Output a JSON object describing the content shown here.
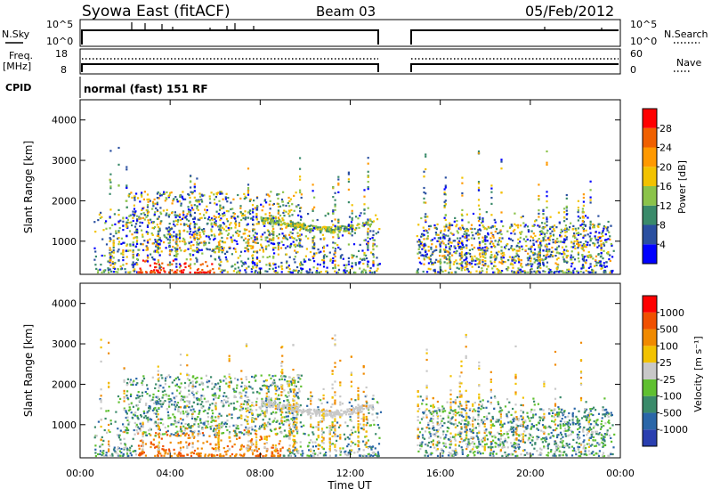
{
  "header": {
    "title": "Syowa East (fitACF)",
    "beam": "Beam 03",
    "date": "05/Feb/2012",
    "cpid_label": "CPID",
    "cpid_value": "normal (fast) 151 RF"
  },
  "noise_panel": {
    "left_label": "N.Sky",
    "left_ticks": [
      "10^5",
      "10^0"
    ],
    "right_label": "N.Search",
    "right_ticks": [
      "10^5",
      "10^0"
    ]
  },
  "freq_panel": {
    "left_label_line1": "Freq.",
    "left_label_line2": "[MHz]",
    "left_ticks": [
      "18",
      "8"
    ],
    "right_label": "Nave",
    "right_ticks": [
      "60",
      "0"
    ]
  },
  "colors": {
    "power_scale": [
      "#0000ff",
      "#2a4fa0",
      "#3a8a6a",
      "#8bc34a",
      "#f2c200",
      "#ff9900",
      "#f06000",
      "#ff0000"
    ],
    "velocity_scale": [
      "#2a3fb0",
      "#2a66a8",
      "#3a8a6a",
      "#5fc030",
      "#c8c8c8",
      "#f2c200",
      "#f08a00",
      "#f05000",
      "#ff0000"
    ]
  },
  "chart_data": [
    {
      "type": "heatmap",
      "name": "power",
      "ylabel": "Slant Range [km]",
      "xlim": [
        "00:00",
        "24:00"
      ],
      "ylim": [
        180,
        4500
      ],
      "y_ticks": [
        1000,
        2000,
        3000,
        4000
      ],
      "colorbar_label": "Power [dB]",
      "colorbar_ticks": [
        4,
        8,
        12,
        16,
        20,
        24,
        28
      ],
      "data_gap": [
        "13:20",
        "14:55"
      ]
    },
    {
      "type": "heatmap",
      "name": "velocity",
      "xlabel": "Time UT",
      "ylabel": "Slant Range [km]",
      "xlim": [
        "00:00",
        "24:00"
      ],
      "ylim": [
        180,
        4500
      ],
      "x_ticks": [
        "00:00",
        "04:00",
        "08:00",
        "12:00",
        "16:00",
        "20:00",
        "00:00"
      ],
      "y_ticks": [
        1000,
        2000,
        3000,
        4000
      ],
      "colorbar_label": "Velocity [m s⁻¹]",
      "colorbar_ticks": [
        1000,
        500,
        100,
        25,
        -25,
        -100,
        -500,
        -1000
      ],
      "data_gap": [
        "13:20",
        "14:55"
      ]
    }
  ]
}
